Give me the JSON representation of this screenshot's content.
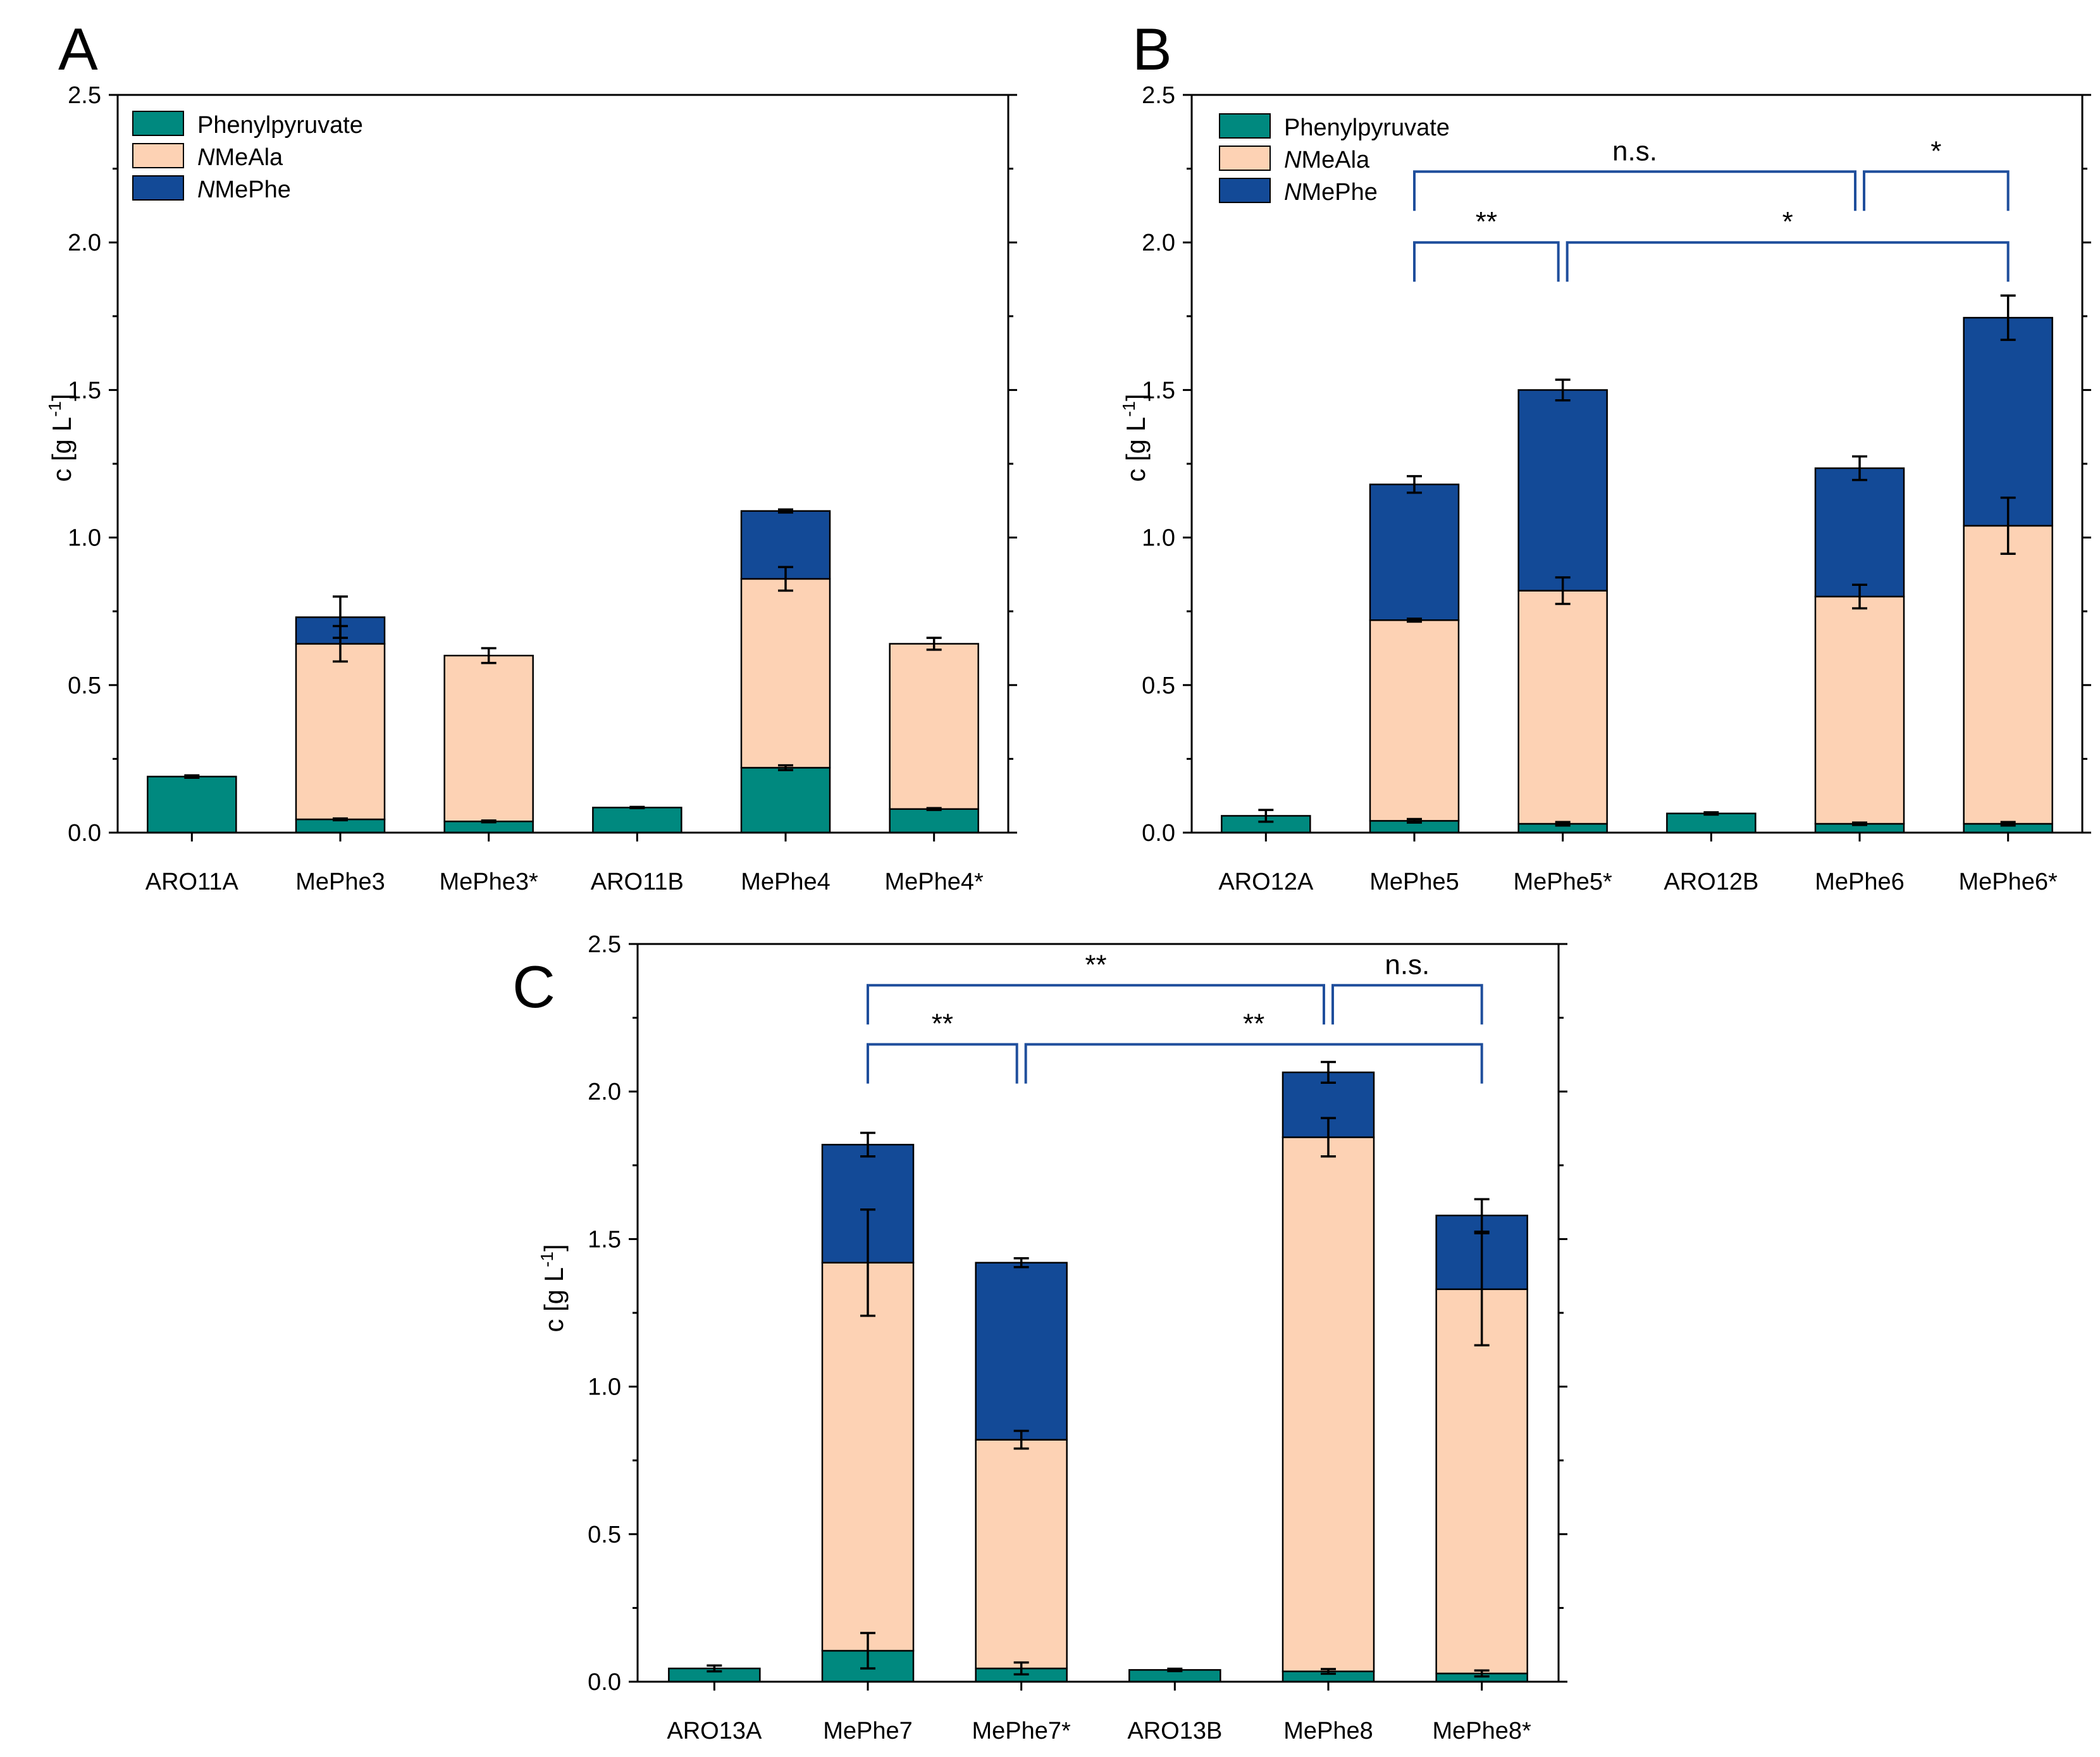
{
  "chart_data": [
    {
      "panel": "A",
      "type": "bar",
      "stacked": true,
      "ylabel": "c [g L-1]",
      "ylabel_parts": [
        "c [g L",
        "-1",
        "]"
      ],
      "ylim": [
        0,
        2.5
      ],
      "yticks": [
        "0.0",
        "0.5",
        "1.0",
        "1.5",
        "2.0",
        "2.5"
      ],
      "categories": [
        "ARO11A",
        "MePhe3",
        "MePhe3*",
        "ARO11B",
        "MePhe4",
        "MePhe4*"
      ],
      "legend": [
        {
          "label": "Phenylpyruvate",
          "italic_prefix": "",
          "rest": "Phenylpyruvate",
          "color": "#00897f"
        },
        {
          "label": "NMeAla",
          "italic_prefix": "N",
          "rest": "MeAla",
          "color": "#fdd2b4"
        },
        {
          "label": "NMePhe",
          "italic_prefix": "N",
          "rest": "MePhe",
          "color": "#134a97"
        }
      ],
      "legend_position": "top-left",
      "series": [
        {
          "name": "Phenylpyruvate",
          "color": "#00897f",
          "values": [
            0.19,
            0.045,
            0.038,
            0.085,
            0.22,
            0.08
          ],
          "errors": [
            0.004,
            0.003,
            0.003,
            0.002,
            0.008,
            0.003
          ]
        },
        {
          "name": "NMeAla",
          "color": "#fdd2b4",
          "values": [
            0,
            0.595,
            0.562,
            0,
            0.64,
            0.56
          ],
          "errors": [
            0,
            0.06,
            0.025,
            0,
            0.04,
            0.02
          ]
        },
        {
          "name": "NMePhe",
          "color": "#134a97",
          "values": [
            0,
            0.09,
            0,
            0,
            0.23,
            0
          ],
          "errors": [
            0,
            0.07,
            0,
            0,
            0.005,
            0
          ]
        }
      ],
      "significance": []
    },
    {
      "panel": "B",
      "type": "bar",
      "stacked": true,
      "ylabel": "c [g L-1]",
      "ylabel_parts": [
        "c [g L",
        "-1",
        "]"
      ],
      "ylim": [
        0,
        2.5
      ],
      "yticks": [
        "0.0",
        "0.5",
        "1.0",
        "1.5",
        "2.0",
        "2.5"
      ],
      "categories": [
        "ARO12A",
        "MePhe5",
        "MePhe5*",
        "ARO12B",
        "MePhe6",
        "MePhe6*"
      ],
      "legend": [
        {
          "label": "Phenylpyruvate",
          "italic_prefix": "",
          "rest": "Phenylpyruvate",
          "color": "#00897f"
        },
        {
          "label": "NMeAla",
          "italic_prefix": "N",
          "rest": "MeAla",
          "color": "#fdd2b4"
        },
        {
          "label": "NMePhe",
          "italic_prefix": "N",
          "rest": "MePhe",
          "color": "#134a97"
        }
      ],
      "legend_position": "top-left",
      "series": [
        {
          "name": "Phenylpyruvate",
          "color": "#00897f",
          "values": [
            0.057,
            0.04,
            0.03,
            0.065,
            0.03,
            0.03
          ],
          "errors": [
            0.02,
            0.006,
            0.006,
            0.004,
            0.004,
            0.006
          ]
        },
        {
          "name": "NMeAla",
          "color": "#fdd2b4",
          "values": [
            0,
            0.68,
            0.79,
            0,
            0.77,
            1.01
          ],
          "errors": [
            0,
            0.005,
            0.045,
            0,
            0.04,
            0.095
          ]
        },
        {
          "name": "NMePhe",
          "color": "#134a97",
          "values": [
            0,
            0.46,
            0.68,
            0,
            0.435,
            0.705
          ],
          "errors": [
            0,
            0.028,
            0.035,
            0,
            0.04,
            0.075
          ]
        }
      ],
      "significance": [
        {
          "label": "**",
          "from": 1,
          "to": 2,
          "level": 2.0
        },
        {
          "label": "*",
          "from": 2,
          "to": 5,
          "level": 2.0
        },
        {
          "label": "n.s.",
          "from": 1,
          "to": 4,
          "level": 2.24
        },
        {
          "label": "*",
          "from": 4,
          "to": 5,
          "level": 2.24
        }
      ]
    },
    {
      "panel": "C",
      "type": "bar",
      "stacked": true,
      "ylabel": "c [g L-1]",
      "ylabel_parts": [
        "c [g L",
        "-1",
        "]"
      ],
      "ylim": [
        0,
        2.5
      ],
      "yticks": [
        "0.0",
        "0.5",
        "1.0",
        "1.5",
        "2.0",
        "2.5"
      ],
      "categories": [
        "ARO13A",
        "MePhe7",
        "MePhe7*",
        "ARO13B",
        "MePhe8",
        "MePhe8*"
      ],
      "legend": [],
      "series": [
        {
          "name": "Phenylpyruvate",
          "color": "#00897f",
          "values": [
            0.045,
            0.105,
            0.045,
            0.04,
            0.035,
            0.028
          ],
          "errors": [
            0.01,
            0.06,
            0.02,
            0.004,
            0.008,
            0.01
          ]
        },
        {
          "name": "NMeAla",
          "color": "#fdd2b4",
          "values": [
            0,
            1.315,
            0.775,
            0,
            1.81,
            1.302
          ],
          "errors": [
            0,
            0.18,
            0.03,
            0,
            0.065,
            0.19
          ]
        },
        {
          "name": "NMePhe",
          "color": "#134a97",
          "values": [
            0,
            0.4,
            0.6,
            0,
            0.22,
            0.25
          ],
          "errors": [
            0,
            0.04,
            0.015,
            0,
            0.035,
            0.055
          ]
        }
      ],
      "significance": [
        {
          "label": "**",
          "from": 1,
          "to": 2,
          "level": 2.16
        },
        {
          "label": "**",
          "from": 2,
          "to": 5,
          "level": 2.16
        },
        {
          "label": "**",
          "from": 1,
          "to": 4,
          "level": 2.36
        },
        {
          "label": "n.s.",
          "from": 4,
          "to": 5,
          "level": 2.36
        }
      ]
    }
  ]
}
